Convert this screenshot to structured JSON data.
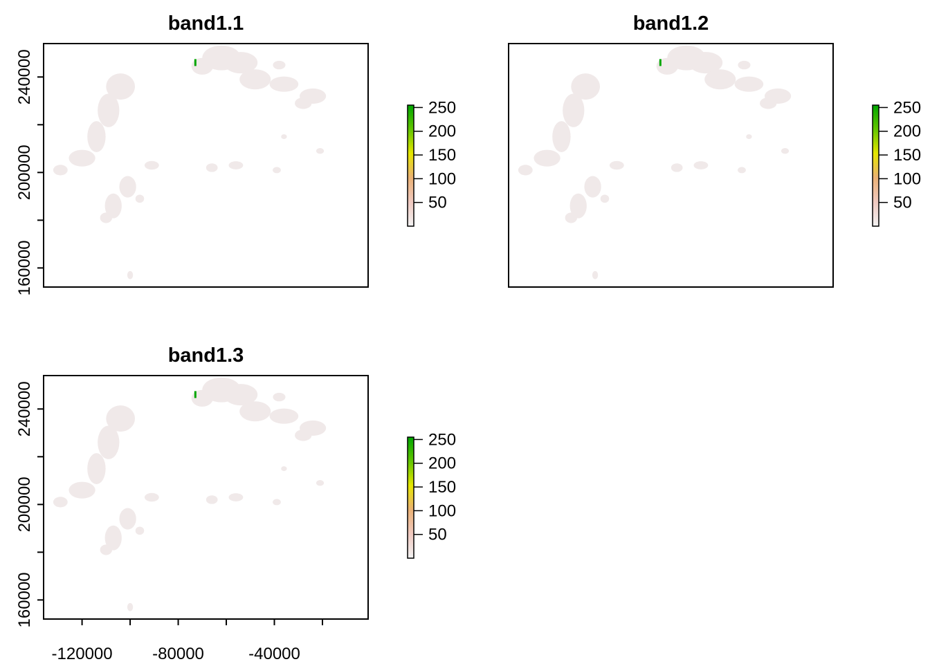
{
  "chart_data": [
    {
      "type": "heatmap",
      "title": "band1.1",
      "xlim": [
        -136000,
        -1000
      ],
      "ylim": [
        152000,
        254000
      ],
      "x_ticks": [
        -120000,
        -100000,
        -80000,
        -60000,
        -40000,
        -20000
      ],
      "x_tick_labels": [],
      "y_ticks": [
        160000,
        180000,
        200000,
        220000,
        240000
      ],
      "y_tick_labels": [
        "160000",
        "",
        "200000",
        "",
        "240000"
      ],
      "legend": {
        "range": [
          0,
          255
        ],
        "ticks": [
          250,
          200,
          150,
          100,
          50
        ],
        "tick_labels": [
          "250",
          "200",
          "150",
          "100",
          "50"
        ],
        "colors": [
          "#f2f2f2",
          "#f0c9c0",
          "#ebb175",
          "#e6e600",
          "#63c600",
          "#00a600"
        ]
      },
      "grid": false
    },
    {
      "type": "heatmap",
      "title": "band1.2",
      "xlim": [
        -136000,
        -1000
      ],
      "ylim": [
        152000,
        254000
      ],
      "x_ticks": [
        -120000,
        -100000,
        -80000,
        -60000,
        -40000,
        -20000
      ],
      "x_tick_labels": [],
      "y_ticks": [
        160000,
        180000,
        200000,
        220000,
        240000
      ],
      "y_tick_labels": [],
      "legend": {
        "range": [
          0,
          255
        ],
        "ticks": [
          250,
          200,
          150,
          100,
          50
        ],
        "tick_labels": [
          "250",
          "200",
          "150",
          "100",
          "50"
        ],
        "colors": [
          "#f2f2f2",
          "#f0c9c0",
          "#ebb175",
          "#e6e600",
          "#63c600",
          "#00a600"
        ]
      },
      "grid": false
    },
    {
      "type": "heatmap",
      "title": "band1.3",
      "xlim": [
        -136000,
        -1000
      ],
      "ylim": [
        152000,
        254000
      ],
      "x_ticks": [
        -120000,
        -100000,
        -80000,
        -60000,
        -40000,
        -20000
      ],
      "x_tick_labels": [
        "-120000",
        "",
        "-80000",
        "",
        "-40000",
        ""
      ],
      "y_ticks": [
        160000,
        180000,
        200000,
        220000,
        240000
      ],
      "y_tick_labels": [
        "160000",
        "",
        "200000",
        "",
        "240000"
      ],
      "legend": {
        "range": [
          0,
          255
        ],
        "ticks": [
          250,
          200,
          150,
          100,
          50
        ],
        "tick_labels": [
          "250",
          "200",
          "150",
          "100",
          "50"
        ],
        "colors": [
          "#f2f2f2",
          "#f0c9c0",
          "#ebb175",
          "#e6e600",
          "#63c600",
          "#00a600"
        ]
      },
      "grid": false
    }
  ]
}
